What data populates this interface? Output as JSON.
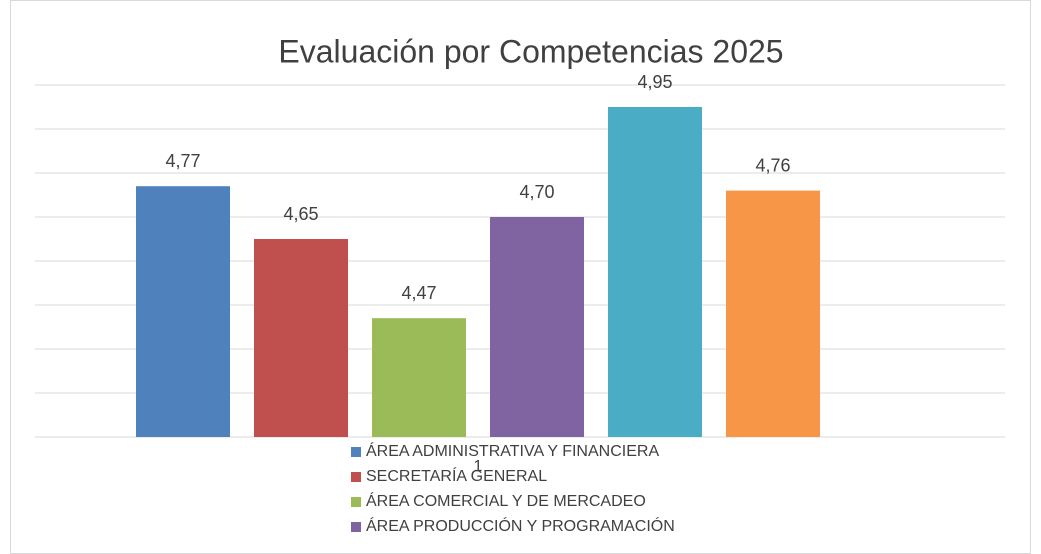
{
  "chart_data": {
    "type": "bar",
    "title": "Evaluación por Competencias 2025",
    "categories": [
      "1"
    ],
    "series": [
      {
        "name": "ÁREA ADMINISTRATIVA Y FINANCIERA",
        "color": "#4f81bd",
        "values": [
          4.77
        ],
        "value_labels": [
          "4,77"
        ]
      },
      {
        "name": "SECRETARÍA GENERAL",
        "color": "#c0504d",
        "values": [
          4.65
        ],
        "value_labels": [
          "4,65"
        ]
      },
      {
        "name": "ÁREA COMERCIAL Y DE MERCADEO",
        "color": "#9bbb59",
        "values": [
          4.47
        ],
        "value_labels": [
          "4,47"
        ]
      },
      {
        "name": "ÁREA PRODUCCIÓN Y PROGRAMACIÓN",
        "color": "#8064a2",
        "values": [
          4.7
        ],
        "value_labels": [
          "4,70"
        ]
      },
      {
        "color": "#4bacc6",
        "values": [
          4.95
        ],
        "value_labels": [
          "4,95"
        ]
      },
      {
        "color": "#f79646",
        "values": [
          4.76
        ],
        "value_labels": [
          "4,76"
        ]
      }
    ],
    "ylim": [
      4.2,
      5.0
    ],
    "yticks": [
      4.2,
      4.3,
      4.4,
      4.5,
      4.6,
      4.7,
      4.8,
      4.9,
      5.0
    ],
    "grid": true
  }
}
